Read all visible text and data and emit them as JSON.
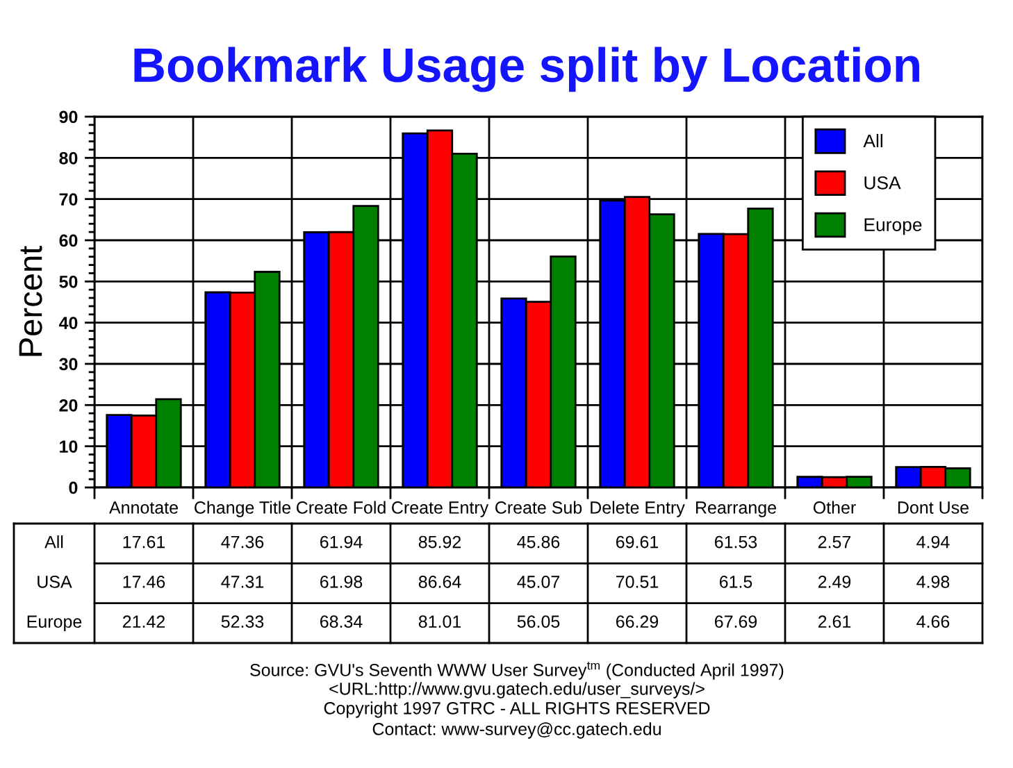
{
  "chart_data": {
    "type": "bar",
    "title": "Bookmark Usage split by Location",
    "ylabel": "Percent",
    "categories": [
      "Annotate",
      "Change Title",
      "Create Fold",
      "Create Entry",
      "Create Sub",
      "Delete Entry",
      "Rearrange",
      "Other",
      "Dont Use"
    ],
    "series": [
      {
        "name": "All",
        "color": "#0000ff",
        "values": [
          17.61,
          47.36,
          61.94,
          85.92,
          45.86,
          69.61,
          61.53,
          2.57,
          4.94
        ]
      },
      {
        "name": "USA",
        "color": "#ff0000",
        "values": [
          17.46,
          47.31,
          61.98,
          86.64,
          45.07,
          70.51,
          61.5,
          2.49,
          4.98
        ]
      },
      {
        "name": "Europe",
        "color": "#008000",
        "values": [
          21.42,
          52.33,
          68.34,
          81.01,
          56.05,
          66.29,
          67.69,
          2.61,
          4.66
        ]
      }
    ],
    "ylim": [
      0,
      90
    ],
    "yticks": [
      0,
      10,
      20,
      30,
      40,
      50,
      60,
      70,
      80,
      90
    ],
    "grid": true,
    "legend": "top right",
    "data_labels": true,
    "annotations": [
      "Source: GVU's Seventh WWW User Survey$^{tm}$ (Conducted April 1997)",
      "<URL:http://www.gvu.gatech.edu/user_surveys/>",
      "Copyright 1997 GTRC - ALL RIGHTS RESERVED",
      "Contact: www-survey@cc.gatech.edu"
    ]
  }
}
